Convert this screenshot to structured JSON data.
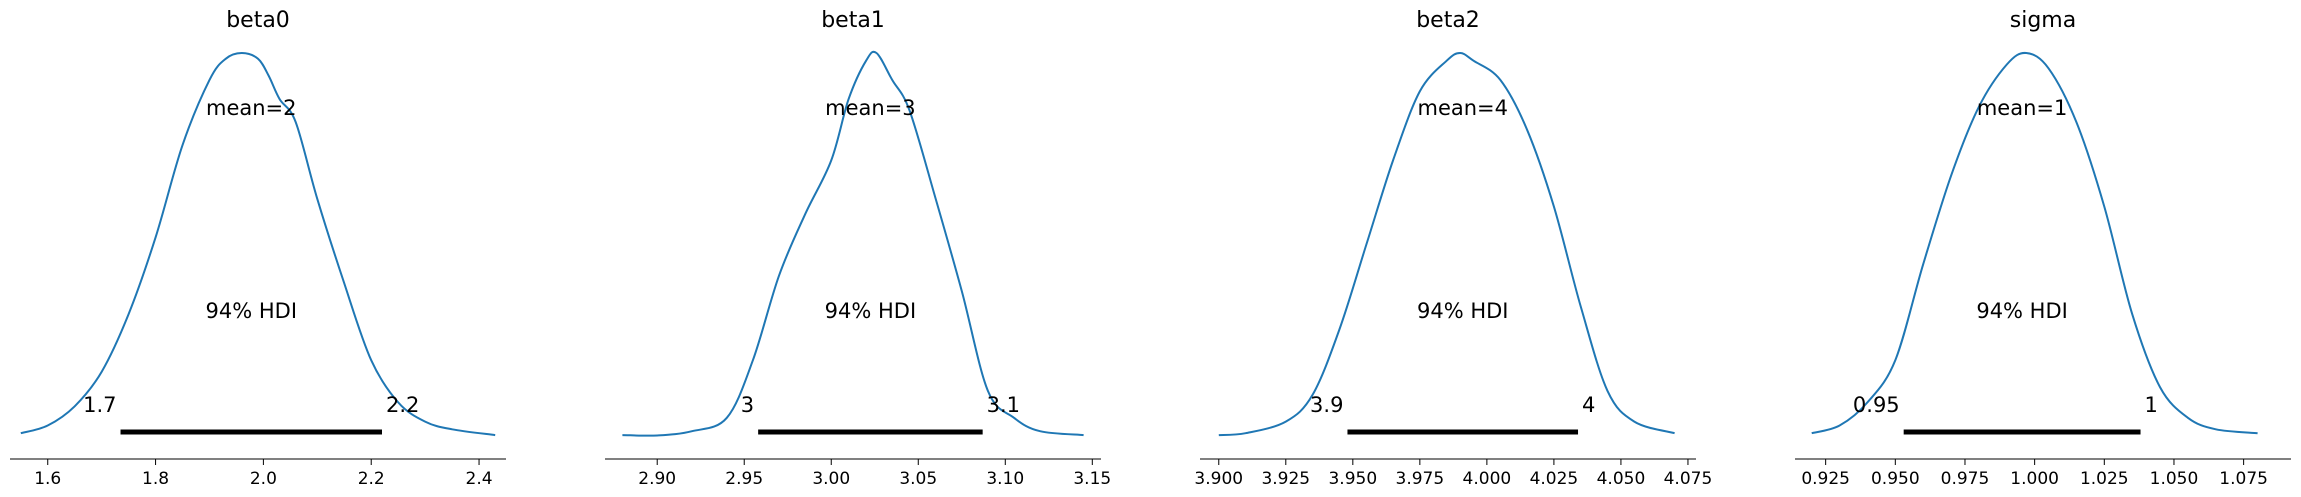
{
  "chart_data": [
    {
      "type": "line",
      "title": "beta0",
      "mean_label": "mean=2",
      "hdi_label": "94% HDI",
      "hdi": [
        1.735,
        2.22
      ],
      "hdi_low_label": "1.7",
      "hdi_high_label": "2.2",
      "xlim": [
        1.53,
        2.45
      ],
      "xticks": [
        1.6,
        1.8,
        2.0,
        2.2,
        2.4
      ],
      "xtick_labels": [
        "1.6",
        "1.8",
        "2.0",
        "2.2",
        "2.4"
      ],
      "color": "#1f77b4",
      "density": {
        "x": [
          1.55,
          1.6,
          1.65,
          1.7,
          1.75,
          1.8,
          1.85,
          1.9,
          1.93,
          1.96,
          1.99,
          2.01,
          2.03,
          2.06,
          2.1,
          2.15,
          2.2,
          2.25,
          2.3,
          2.35,
          2.43
        ],
        "y": [
          0.01,
          0.03,
          0.08,
          0.17,
          0.32,
          0.52,
          0.76,
          0.93,
          0.985,
          1.0,
          0.985,
          0.94,
          0.88,
          0.82,
          0.62,
          0.4,
          0.2,
          0.09,
          0.04,
          0.02,
          0.005
        ]
      }
    },
    {
      "type": "line",
      "title": "beta1",
      "mean_label": "mean=3",
      "hdi_label": "94% HDI",
      "hdi": [
        2.958,
        3.087
      ],
      "hdi_low_label": "3",
      "hdi_high_label": "3.1",
      "xlim": [
        2.87,
        3.155
      ],
      "xticks": [
        2.9,
        2.95,
        3.0,
        3.05,
        3.1,
        3.15
      ],
      "xtick_labels": [
        "2.90",
        "2.95",
        "3.00",
        "3.05",
        "3.10",
        "3.15"
      ],
      "color": "#1f77b4",
      "density": {
        "x": [
          2.88,
          2.9,
          2.92,
          2.94,
          2.955,
          2.97,
          2.985,
          3.0,
          3.01,
          3.02,
          3.026,
          3.035,
          3.045,
          3.06,
          3.075,
          3.09,
          3.105,
          3.12,
          3.145
        ],
        "y": [
          0.005,
          0.004,
          0.015,
          0.05,
          0.2,
          0.42,
          0.58,
          0.72,
          0.88,
          0.98,
          1.0,
          0.93,
          0.85,
          0.62,
          0.38,
          0.12,
          0.05,
          0.015,
          0.005
        ]
      }
    },
    {
      "type": "line",
      "title": "beta2",
      "mean_label": "mean=4",
      "hdi_label": "94% HDI",
      "hdi": [
        3.948,
        4.034
      ],
      "hdi_low_label": "3.9",
      "hdi_high_label": "4",
      "xlim": [
        3.893,
        4.078
      ],
      "xticks": [
        3.9,
        3.925,
        3.95,
        3.975,
        4.0,
        4.025,
        4.05,
        4.075
      ],
      "xtick_labels": [
        "3.900",
        "3.925",
        "3.950",
        "3.975",
        "4.000",
        "4.025",
        "4.050",
        "4.075"
      ],
      "color": "#1f77b4",
      "density": {
        "x": [
          3.9,
          3.91,
          3.925,
          3.935,
          3.945,
          3.955,
          3.965,
          3.975,
          3.985,
          3.99,
          3.995,
          4.005,
          4.015,
          4.025,
          4.035,
          4.045,
          4.055,
          4.07
        ],
        "y": [
          0.005,
          0.01,
          0.04,
          0.11,
          0.28,
          0.5,
          0.72,
          0.9,
          0.98,
          1.0,
          0.98,
          0.93,
          0.8,
          0.6,
          0.34,
          0.12,
          0.04,
          0.01
        ]
      }
    },
    {
      "type": "line",
      "title": "sigma",
      "mean_label": "mean=1",
      "hdi_label": "94% HDI",
      "hdi": [
        0.953,
        1.038
      ],
      "hdi_low_label": "0.95",
      "hdi_high_label": "1",
      "xlim": [
        0.914,
        1.092
      ],
      "xticks": [
        0.925,
        0.95,
        0.975,
        1.0,
        1.025,
        1.05,
        1.075
      ],
      "xtick_labels": [
        "0.925",
        "0.950",
        "0.975",
        "1.000",
        "1.025",
        "1.050",
        "1.075"
      ],
      "color": "#1f77b4",
      "density": {
        "x": [
          0.92,
          0.93,
          0.94,
          0.95,
          0.96,
          0.97,
          0.98,
          0.99,
          0.997,
          1.005,
          1.015,
          1.025,
          1.035,
          1.045,
          1.055,
          1.065,
          1.08
        ],
        "y": [
          0.01,
          0.03,
          0.09,
          0.2,
          0.45,
          0.68,
          0.86,
          0.97,
          1.0,
          0.96,
          0.82,
          0.6,
          0.32,
          0.13,
          0.05,
          0.02,
          0.01
        ]
      }
    }
  ]
}
